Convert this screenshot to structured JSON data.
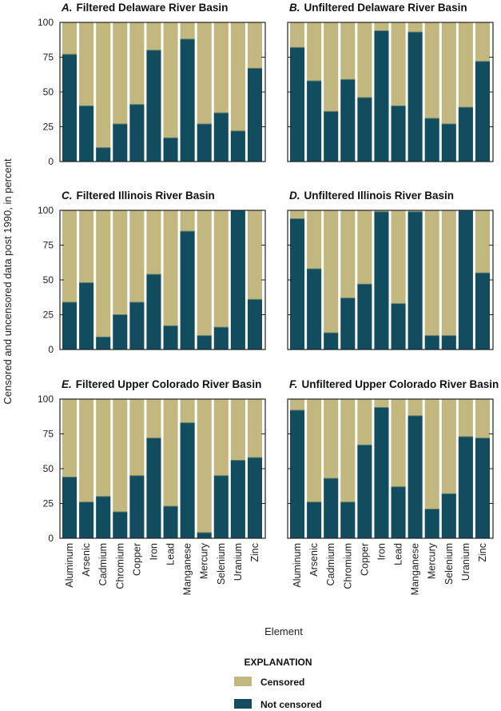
{
  "chart_data": {
    "type": "bar",
    "stacked": true,
    "ylabel": "Censored and uncensored data post 1990, in percent",
    "xlabel": "Element",
    "ylim": [
      0,
      100
    ],
    "yticks": [
      0,
      25,
      50,
      75,
      100
    ],
    "grid": false,
    "categories": [
      "Aluminum",
      "Arsenic",
      "Cadmium",
      "Chromium",
      "Copper",
      "Iron",
      "Lead",
      "Manganese",
      "Mercury",
      "Selenium",
      "Uranium",
      "Zinc"
    ],
    "legend": {
      "title": "EXPLANATION",
      "placement": "bottom",
      "items": [
        {
          "label": "Censored",
          "color": "#c2b87f"
        },
        {
          "label": "Not censored",
          "color": "#114d5e"
        }
      ]
    },
    "panels": [
      {
        "letter": "A.",
        "title": "Filtered Delaware River Basin",
        "not_censored": [
          77,
          40,
          10,
          27,
          41,
          80,
          17,
          88,
          27,
          35,
          22,
          67
        ]
      },
      {
        "letter": "B.",
        "title": "Unfiltered Delaware River Basin",
        "not_censored": [
          82,
          58,
          36,
          59,
          46,
          94,
          40,
          93,
          31,
          27,
          39,
          72
        ]
      },
      {
        "letter": "C.",
        "title": "Filtered Illinois River Basin",
        "not_censored": [
          34,
          48,
          9,
          25,
          34,
          54,
          17,
          85,
          10,
          16,
          100,
          36
        ]
      },
      {
        "letter": "D.",
        "title": "Unfiltered Illinois River Basin",
        "not_censored": [
          94,
          58,
          12,
          37,
          47,
          99,
          33,
          99,
          10,
          10,
          100,
          55
        ]
      },
      {
        "letter": "E.",
        "title": "Filtered Upper Colorado River Basin",
        "not_censored": [
          44,
          26,
          30,
          19,
          45,
          72,
          23,
          83,
          4,
          45,
          56,
          58
        ]
      },
      {
        "letter": "F.",
        "title": "Unfiltered Upper Colorado River Basin",
        "not_censored": [
          92,
          26,
          43,
          26,
          67,
          94,
          37,
          88,
          21,
          32,
          73,
          72
        ]
      }
    ]
  }
}
